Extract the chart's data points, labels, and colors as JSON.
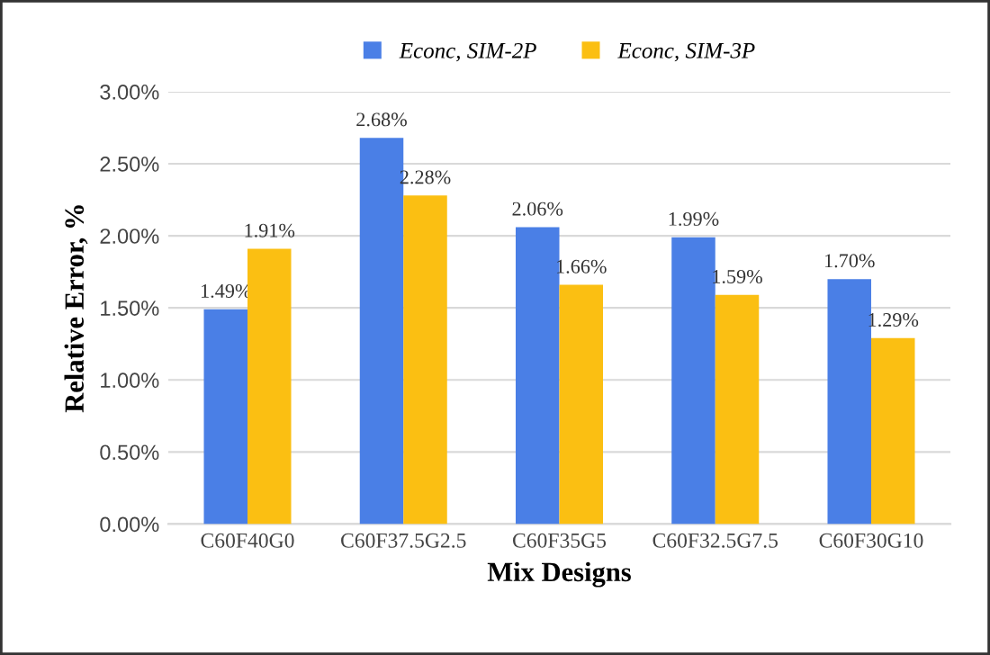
{
  "chart_data": {
    "type": "bar",
    "xlabel": "Mix Designs",
    "ylabel": "Relative Error, %",
    "categories": [
      "C60F40G0",
      "C60F37.5G2.5",
      "C60F35G5",
      "C60F32.5G7.5",
      "C60F30G10"
    ],
    "series": [
      {
        "name": "Econc, SIM-2P",
        "color": "#4a7fe6",
        "values": [
          1.49,
          2.68,
          2.06,
          1.99,
          1.7
        ],
        "value_labels": [
          "1.49%",
          "2.68%",
          "2.06%",
          "1.99%",
          "1.70%"
        ]
      },
      {
        "name": "Econc, SIM-3P",
        "color": "#fbbf12",
        "values": [
          1.91,
          2.28,
          1.66,
          1.59,
          1.29
        ],
        "value_labels": [
          "1.91%",
          "2.28%",
          "1.66%",
          "1.59%",
          "1.29%"
        ]
      }
    ],
    "ylim": [
      0,
      3.0
    ],
    "yticks": [
      {
        "value": 0,
        "label": "0.00%"
      },
      {
        "value": 0.5,
        "label": "0.50%"
      },
      {
        "value": 1.0,
        "label": "1.00%"
      },
      {
        "value": 1.5,
        "label": "1.50%"
      },
      {
        "value": 2.0,
        "label": "2.00%"
      },
      {
        "value": 2.5,
        "label": "2.50%"
      },
      {
        "value": 3.0,
        "label": "3.00%"
      }
    ],
    "grid": "y",
    "legend": "top"
  }
}
